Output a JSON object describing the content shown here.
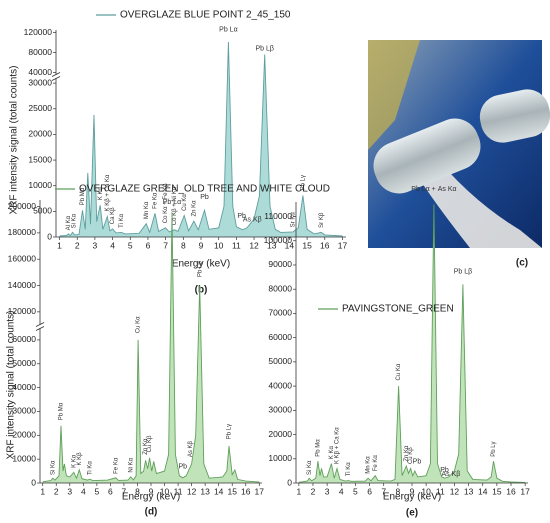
{
  "chart_data": [
    {
      "type": "area",
      "legend": "OVERGLAZE BLUE POINT 2_45_150",
      "xlabel": "Energy (keV)",
      "ylabel": "XRF intensity signal (total counts)",
      "panel_label": "(b)",
      "color": "#5f9e9e",
      "fill": "#acdbd8",
      "xlim": [
        0.8,
        17.2
      ],
      "xticks": [
        1,
        2,
        3,
        4,
        5,
        6,
        7,
        8,
        9,
        10,
        11,
        12,
        13,
        14,
        15,
        16,
        17
      ],
      "y_segments": [
        {
          "ylim": [
            0,
            31000
          ],
          "yticks": [
            0,
            5000,
            10000,
            15000,
            20000,
            25000,
            30000
          ]
        },
        {
          "ylim": [
            35000,
            125000
          ],
          "yticks": [
            40000,
            80000,
            120000
          ]
        }
      ],
      "x": [
        1.0,
        1.4,
        1.5,
        1.6,
        1.74,
        1.85,
        2.1,
        2.3,
        2.45,
        2.6,
        2.75,
        2.95,
        3.1,
        3.3,
        3.45,
        3.7,
        3.85,
        4.0,
        4.2,
        4.5,
        4.7,
        5.5,
        5.9,
        6.1,
        6.4,
        6.6,
        7.0,
        7.2,
        7.5,
        7.7,
        8.05,
        8.3,
        8.6,
        8.85,
        9.2,
        9.45,
        10.0,
        10.3,
        10.55,
        10.8,
        11.0,
        11.35,
        11.6,
        12.0,
        12.3,
        12.6,
        12.9,
        13.2,
        13.5,
        14.2,
        14.5,
        14.76,
        15.0,
        15.4,
        15.8,
        16.0,
        17.0
      ],
      "values": [
        200,
        300,
        600,
        300,
        900,
        400,
        500,
        5200,
        1500,
        12500,
        2500,
        23800,
        3000,
        6200,
        1500,
        4000,
        1200,
        1600,
        800,
        900,
        600,
        700,
        2600,
        900,
        4600,
        1100,
        1800,
        1000,
        1400,
        1100,
        4200,
        1200,
        3100,
        1400,
        5200,
        1500,
        1800,
        6000,
        101000,
        6000,
        2000,
        1400,
        1800,
        3500,
        8000,
        76000,
        6000,
        1500,
        900,
        1000,
        1800,
        8100,
        1500,
        600,
        900,
        400,
        200
      ],
      "annotations": [
        {
          "text": "Al Kα",
          "x": 1.5,
          "y": 900,
          "rotated": true
        },
        {
          "text": "Si Kα",
          "x": 1.8,
          "y": 1300,
          "rotated": true
        },
        {
          "text": "Pb Mα",
          "x": 2.3,
          "y": 5800,
          "rotated": true
        },
        {
          "text": "K Kα",
          "x": 3.3,
          "y": 6800,
          "rotated": true
        },
        {
          "text": "K Kβ + Ca Kα",
          "x": 3.7,
          "y": 4600,
          "rotated": true
        },
        {
          "text": "Ca Kβ",
          "x": 4.0,
          "y": 2100,
          "rotated": true
        },
        {
          "text": "Ti Kα",
          "x": 4.5,
          "y": 1400,
          "rotated": true
        },
        {
          "text": "Mn Kα",
          "x": 5.9,
          "y": 3100,
          "rotated": true
        },
        {
          "text": "Fe Kα",
          "x": 6.4,
          "y": 5100,
          "rotated": true
        },
        {
          "text": "Co Kα + Fe Kβ",
          "x": 7.0,
          "y": 2300,
          "rotated": true
        },
        {
          "text": "Co Kβ + Ni Kα",
          "x": 7.5,
          "y": 1900,
          "rotated": true
        },
        {
          "text": "Cu Kα",
          "x": 8.05,
          "y": 4700,
          "rotated": true
        },
        {
          "text": "Zn Kα",
          "x": 8.6,
          "y": 3600,
          "rotated": true
        },
        {
          "text": "Pb",
          "x": 9.2,
          "y": 7200,
          "rotated": false
        },
        {
          "text": "Pb Lα",
          "x": 10.55,
          "y": 120000,
          "rotated": false
        },
        {
          "text": "Pb",
          "x": 11.3,
          "y": 3500,
          "rotated": false
        },
        {
          "text": "As Kβ",
          "x": 11.9,
          "y": 2800,
          "rotated": false
        },
        {
          "text": "Pb Lβ",
          "x": 12.6,
          "y": 82000,
          "rotated": false
        },
        {
          "text": "Sr Kα",
          "x": 14.2,
          "y": 1500,
          "rotated": true
        },
        {
          "text": "Pb Lγ",
          "x": 14.76,
          "y": 8700,
          "rotated": true
        },
        {
          "text": "Sr Kβ",
          "x": 15.8,
          "y": 1400,
          "rotated": true
        }
      ]
    },
    {
      "type": "area",
      "legend": "OVERGLAZE GREEN_OLD TREE AND WHITE CLOUD",
      "xlabel": "Energy (keV)",
      "ylabel": "XRF intensity signal (total counts)",
      "panel_label": "(d)",
      "color": "#5f9f5a",
      "fill": "#c0e3b9",
      "xlim": [
        0.8,
        17.2
      ],
      "xticks": [
        1,
        2,
        3,
        4,
        5,
        6,
        7,
        8,
        9,
        10,
        11,
        12,
        13,
        14,
        15,
        16,
        17
      ],
      "y_segments": [
        {
          "ylim": [
            0,
            65000
          ],
          "yticks": [
            0,
            10000,
            20000,
            30000,
            40000,
            50000,
            60000
          ]
        },
        {
          "ylim": [
            110000,
            205000
          ],
          "yticks": [
            120000,
            140000,
            160000,
            180000,
            200000
          ]
        }
      ],
      "x": [
        1.0,
        1.6,
        1.74,
        1.9,
        2.2,
        2.35,
        2.5,
        2.6,
        2.75,
        3.0,
        3.3,
        3.5,
        3.7,
        3.9,
        4.3,
        4.5,
        4.7,
        5.8,
        6.4,
        6.6,
        7.3,
        7.5,
        7.7,
        7.9,
        8.05,
        8.25,
        8.45,
        8.6,
        8.75,
        8.9,
        9.05,
        9.2,
        9.4,
        10.0,
        10.3,
        10.55,
        10.8,
        11.1,
        11.35,
        11.6,
        12.0,
        12.3,
        12.6,
        12.9,
        13.3,
        14.3,
        14.6,
        14.76,
        15.0,
        15.2,
        15.4,
        16.0,
        17.0
      ],
      "values": [
        500,
        1000,
        2000,
        1200,
        3000,
        24000,
        5000,
        8000,
        3000,
        2500,
        4500,
        2000,
        5500,
        1800,
        1200,
        1600,
        1000,
        1200,
        2200,
        1100,
        1200,
        2600,
        1300,
        3000,
        60000,
        4000,
        5000,
        9500,
        6000,
        10500,
        5000,
        9000,
        4000,
        5000,
        12000,
        195000,
        12000,
        3000,
        2200,
        3000,
        8000,
        20000,
        140000,
        8000,
        2000,
        2500,
        5000,
        15500,
        3500,
        5500,
        1500,
        800,
        400
      ],
      "annotations": [
        {
          "text": "Si Kα",
          "x": 1.74,
          "y": 2500,
          "rotated": true
        },
        {
          "text": "Pb Mα",
          "x": 2.35,
          "y": 25500,
          "rotated": true
        },
        {
          "text": "K Kα",
          "x": 3.3,
          "y": 5500,
          "rotated": true
        },
        {
          "text": "K Kβ",
          "x": 3.7,
          "y": 6500,
          "rotated": true
        },
        {
          "text": "Ti Kα",
          "x": 4.5,
          "y": 2500,
          "rotated": true
        },
        {
          "text": "Fe Kα",
          "x": 6.4,
          "y": 3000,
          "rotated": true
        },
        {
          "text": "Ni Kα",
          "x": 7.5,
          "y": 3500,
          "rotated": true
        },
        {
          "text": "Cu Kα",
          "x": 8.05,
          "y": 62000,
          "rotated": true
        },
        {
          "text": "Zn Kα",
          "x": 8.6,
          "y": 11000,
          "rotated": true
        },
        {
          "text": "Cu Kβ",
          "x": 8.9,
          "y": 12000,
          "rotated": true
        },
        {
          "text": "Pb Lα",
          "x": 10.55,
          "y": 201000,
          "rotated": false
        },
        {
          "text": "Pb",
          "x": 11.35,
          "y": 5500,
          "rotated": false
        },
        {
          "text": "As Kβ",
          "x": 11.9,
          "y": 10000,
          "rotated": true
        },
        {
          "text": "Pb Lβ",
          "x": 12.6,
          "y": 145000,
          "rotated": true
        },
        {
          "text": "Pb Lγ",
          "x": 14.76,
          "y": 17500,
          "rotated": true
        }
      ]
    },
    {
      "type": "area",
      "legend": "PAVINGSTONE_GREEN",
      "xlabel": "Energy (keV)",
      "panel_label": "(e)",
      "color": "#5f9f5a",
      "fill": "#c0e3b9",
      "xlim": [
        0.8,
        17.2
      ],
      "xticks": [
        1,
        2,
        3,
        4,
        5,
        6,
        7,
        8,
        9,
        10,
        11,
        12,
        13,
        14,
        15,
        16,
        17
      ],
      "y_segments": [
        {
          "ylim": [
            0,
            116000
          ],
          "yticks": [
            0,
            10000,
            20000,
            30000,
            40000,
            50000,
            60000,
            70000,
            80000,
            90000,
            100000,
            110000
          ]
        }
      ],
      "x": [
        1.0,
        1.6,
        1.74,
        1.9,
        2.2,
        2.35,
        2.5,
        2.6,
        2.75,
        3.0,
        3.3,
        3.5,
        3.7,
        3.9,
        4.3,
        4.5,
        4.7,
        5.7,
        5.9,
        6.1,
        6.4,
        6.6,
        7.5,
        7.8,
        8.05,
        8.3,
        8.6,
        8.75,
        8.9,
        9.05,
        9.2,
        9.4,
        10.0,
        10.3,
        10.55,
        10.8,
        11.1,
        11.3,
        11.6,
        12.0,
        12.3,
        12.6,
        12.9,
        13.3,
        14.3,
        14.6,
        14.76,
        15.0,
        15.4,
        16.0,
        17.0
      ],
      "values": [
        300,
        800,
        2000,
        900,
        2000,
        9000,
        3000,
        6000,
        2500,
        2500,
        8000,
        2000,
        6000,
        1500,
        800,
        1000,
        700,
        800,
        2000,
        900,
        3000,
        1000,
        800,
        1500,
        40000,
        3000,
        7000,
        4000,
        6000,
        3000,
        5000,
        2500,
        3000,
        8000,
        115000,
        8000,
        2500,
        2000,
        2500,
        5000,
        12000,
        82000,
        5000,
        1500,
        1200,
        2500,
        9000,
        2000,
        700,
        400,
        200
      ],
      "annotations": [
        {
          "text": "Si Kα",
          "x": 1.74,
          "y": 2500,
          "rotated": true
        },
        {
          "text": "Pb Mα",
          "x": 2.35,
          "y": 10000,
          "rotated": true
        },
        {
          "text": "K Kα",
          "x": 3.3,
          "y": 9000,
          "rotated": true
        },
        {
          "text": "K Kβ + Ca Kα",
          "x": 3.7,
          "y": 7000,
          "rotated": true
        },
        {
          "text": "Ti Kα",
          "x": 4.5,
          "y": 2000,
          "rotated": true
        },
        {
          "text": "Mn Kα",
          "x": 5.9,
          "y": 3000,
          "rotated": true
        },
        {
          "text": "Fe Kα",
          "x": 6.4,
          "y": 4000,
          "rotated": true
        },
        {
          "text": "Cu Kα",
          "x": 8.05,
          "y": 41500,
          "rotated": true
        },
        {
          "text": "Zn Kα",
          "x": 8.6,
          "y": 8000,
          "rotated": true
        },
        {
          "text": "Cu Kβ",
          "x": 8.9,
          "y": 7000,
          "rotated": true
        },
        {
          "text": "Pb",
          "x": 9.35,
          "y": 7500,
          "rotated": false
        },
        {
          "text": "Pb Lα + As Kα",
          "x": 10.55,
          "y": 120000,
          "rotated": false
        },
        {
          "text": "Pb",
          "x": 11.3,
          "y": 4000,
          "rotated": false
        },
        {
          "text": "As Kβ",
          "x": 11.75,
          "y": 2500,
          "rotated": false
        },
        {
          "text": "Pb Lβ",
          "x": 12.6,
          "y": 86000,
          "rotated": false
        },
        {
          "text": "Pb Lγ",
          "x": 14.76,
          "y": 10000,
          "rotated": true
        }
      ]
    }
  ],
  "photo": {
    "panel_label": "(c)"
  }
}
